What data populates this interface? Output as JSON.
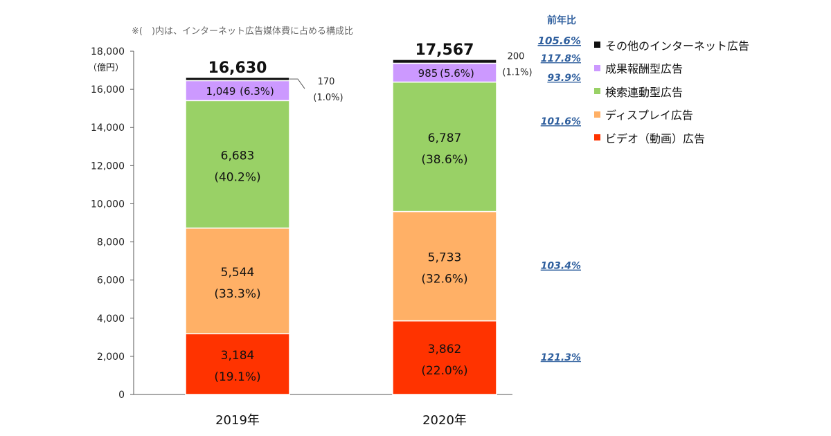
{
  "chart_data": {
    "type": "bar",
    "stacked": true,
    "note": "※(　)内は、インターネット広告媒体費に占める構成比",
    "y_unit_label": "（億円）",
    "ylim": [
      0,
      18000
    ],
    "yticks": [
      {
        "value": 0,
        "label": "0"
      },
      {
        "value": 2000,
        "label": "2,000"
      },
      {
        "value": 4000,
        "label": "4,000"
      },
      {
        "value": 6000,
        "label": "6,000"
      },
      {
        "value": 8000,
        "label": "8,000"
      },
      {
        "value": 10000,
        "label": "10,000"
      },
      {
        "value": 12000,
        "label": "12,000"
      },
      {
        "value": 14000,
        "label": "14,000"
      },
      {
        "value": 16000,
        "label": "16,000"
      },
      {
        "value": 18000,
        "label": "18,000"
      }
    ],
    "categories": [
      "2019年",
      "2020年"
    ],
    "totals": [
      {
        "value": 16630,
        "label": "16,630"
      },
      {
        "value": 17567,
        "label": "17,567"
      }
    ],
    "series": [
      {
        "name": "ビデオ（動画）広告",
        "color": "#ff3300",
        "values": [
          3184,
          3862
        ],
        "value_labels": [
          "3,184",
          "3,862"
        ],
        "share_labels": [
          "(19.1%)",
          "(22.0%)"
        ]
      },
      {
        "name": "ディスプレイ広告",
        "color": "#ffb066",
        "values": [
          5544,
          5733
        ],
        "value_labels": [
          "5,544",
          "5,733"
        ],
        "share_labels": [
          "(33.3%)",
          "(32.6%)"
        ]
      },
      {
        "name": "検索連動型広告",
        "color": "#99d166",
        "values": [
          6683,
          6787
        ],
        "value_labels": [
          "6,683",
          "6,787"
        ],
        "share_labels": [
          "(40.2%)",
          "(38.6%)"
        ]
      },
      {
        "name": "成果報酬型広告",
        "color": "#cc99ff",
        "values": [
          1049,
          985
        ],
        "value_labels": [
          "1,049",
          "985"
        ],
        "share_labels": [
          "(6.3%)",
          "(5.6%)"
        ]
      },
      {
        "name": "その他のインターネット広告",
        "color": "#111111",
        "values": [
          170,
          200
        ],
        "value_labels": [
          "170",
          "200"
        ],
        "share_labels": [
          "(1.0%)",
          "(1.1%)"
        ]
      }
    ],
    "yoy_header": "前年比",
    "yoy": [
      {
        "series": "ビデオ（動画）広告",
        "label": "121.3%"
      },
      {
        "series": "ディスプレイ広告",
        "label": "103.4%"
      },
      {
        "series": "検索連動型広告",
        "label": "101.6%"
      },
      {
        "series": "成果報酬型広告",
        "label": "93.9%"
      },
      {
        "series": "その他のインターネット広告",
        "label": "117.8%"
      },
      {
        "series": "total",
        "label": "105.6%"
      }
    ],
    "legend": [
      {
        "label": "その他のインターネット広告",
        "color": "#111111"
      },
      {
        "label": "成果報酬型広告",
        "color": "#cc99ff"
      },
      {
        "label": "検索連動型広告",
        "color": "#99d166"
      },
      {
        "label": "ディスプレイ広告",
        "color": "#ffb066"
      },
      {
        "label": "ビデオ（動画）広告",
        "color": "#ff3300"
      }
    ],
    "legend_position": "right"
  }
}
